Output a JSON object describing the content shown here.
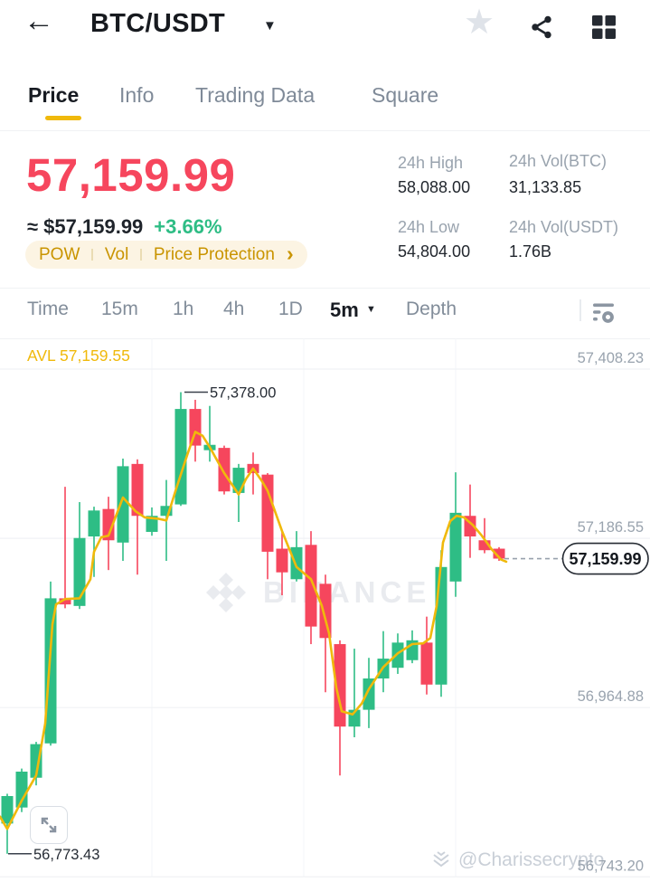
{
  "colors": {
    "up": "#2EBD85",
    "down": "#F6465D",
    "accent": "#F0B90B",
    "dark": "#1E2329",
    "gray": "#848E9C",
    "axis_gray": "#99A3AE",
    "grid": "#F0F2F5",
    "vgrid": "#F3F5F8",
    "annotation_line": "#3A414C",
    "annotation_text": "#262C35",
    "dashed": "#98A1AC",
    "box_border": "#262B33",
    "box_text": "#14181E"
  },
  "icons": {
    "back": "←",
    "caret_down": "▼",
    "chevron_right": "›",
    "star": "★"
  },
  "header": {
    "title": "BTC/USDT"
  },
  "tabs": {
    "items": [
      {
        "label": "Price",
        "active": true
      },
      {
        "label": "Info",
        "active": false
      },
      {
        "label": "Trading Data",
        "active": false
      },
      {
        "label": "Square",
        "active": false
      }
    ]
  },
  "ticker": {
    "last_price": "57,159.99",
    "fiat": "≈ $57,159.99",
    "change": "+3.66%",
    "tags": [
      "POW",
      "Vol",
      "Price Protection"
    ]
  },
  "stats": {
    "items": [
      {
        "label": "24h High",
        "value": "58,088.00"
      },
      {
        "label": "24h Vol(BTC)",
        "value": "31,133.85"
      },
      {
        "label": "24h Low",
        "value": "54,804.00"
      },
      {
        "label": "24h Vol(USDT)",
        "value": "1.76B"
      }
    ]
  },
  "toolbar": {
    "intervals": [
      "Time",
      "15m",
      "1h",
      "4h",
      "1D"
    ],
    "selected": "5m",
    "depth": "Depth"
  },
  "watermarks": {
    "center": "BINANCE",
    "bottom": "@Charissecrypto"
  },
  "chart_data": {
    "type": "candlestick",
    "pair": "BTC/USDT",
    "interval": "5m",
    "ma_label": "AVL 57,159.55",
    "y_axis": {
      "labels": [
        "57,408.23",
        "57,186.55",
        "56,964.88",
        "56,743.20"
      ],
      "values": [
        57408.23,
        57186.55,
        56964.88,
        56743.2
      ]
    },
    "high_annotation": {
      "label": "57,378.00",
      "price": 57378.0,
      "candle_index": 12
    },
    "low_annotation": {
      "label": "56,773.43",
      "price": 56773.43,
      "candle_index": 0
    },
    "last_price": {
      "label": "57,159.99",
      "price": 57159.99
    },
    "candles": [
      [
        56813,
        56852,
        56773.43,
        56849
      ],
      [
        56834,
        56885,
        56828,
        56881
      ],
      [
        56873,
        56920,
        56863,
        56917
      ],
      [
        56918,
        57130,
        56915,
        57108
      ],
      [
        57108,
        57254,
        57095,
        57100
      ],
      [
        57098,
        57234,
        57094,
        57187
      ],
      [
        57189,
        57228,
        57136,
        57223
      ],
      [
        57225,
        57241,
        57145,
        57184
      ],
      [
        57181,
        57291,
        57157,
        57281
      ],
      [
        57284,
        57290,
        57139,
        57216
      ],
      [
        57195,
        57227,
        57190,
        57216
      ],
      [
        57216,
        57263,
        57157,
        57229
      ],
      [
        57231,
        57378,
        57229,
        57356
      ],
      [
        57356,
        57368,
        57287,
        57308
      ],
      [
        57302,
        57360,
        57287,
        57309
      ],
      [
        57305,
        57308,
        57244,
        57248
      ],
      [
        57246,
        57284,
        57208,
        57279
      ],
      [
        57284,
        57299,
        57244,
        57272
      ],
      [
        57270,
        57272,
        57133,
        57169
      ],
      [
        57173,
        57195,
        57112,
        57142
      ],
      [
        57133,
        57196,
        57130,
        57175
      ],
      [
        57178,
        57196,
        57048,
        57071
      ],
      [
        57127,
        57139,
        56985,
        57056
      ],
      [
        57048,
        57053,
        56876,
        56940
      ],
      [
        56940,
        57042,
        56926,
        56962
      ],
      [
        56962,
        57030,
        56938,
        57003
      ],
      [
        57003,
        57065,
        56985,
        57029
      ],
      [
        57017,
        57062,
        57009,
        57050
      ],
      [
        57027,
        57066,
        57023,
        57053
      ],
      [
        57050,
        57084,
        56982,
        56995
      ],
      [
        56995,
        57171,
        56979,
        57149
      ],
      [
        57130,
        57273,
        57110,
        57220
      ],
      [
        57216,
        57257,
        57161,
        57189
      ],
      [
        57184,
        57213,
        57167,
        57171
      ],
      [
        57173,
        57175,
        57157,
        57159.99
      ]
    ],
    "ma_line": [
      [
        0,
        56822
      ],
      [
        8,
        56806
      ],
      [
        24,
        56843
      ],
      [
        40,
        56876
      ],
      [
        50,
        56944
      ],
      [
        58,
        57074
      ],
      [
        62,
        57100
      ],
      [
        72,
        57107
      ],
      [
        88,
        57108
      ],
      [
        100,
        57133
      ],
      [
        104,
        57169
      ],
      [
        112,
        57188
      ],
      [
        120,
        57190
      ],
      [
        136,
        57240
      ],
      [
        150,
        57222
      ],
      [
        160,
        57214
      ],
      [
        176,
        57212
      ],
      [
        184,
        57210
      ],
      [
        195,
        57252
      ],
      [
        208,
        57299
      ],
      [
        216,
        57326
      ],
      [
        224,
        57321
      ],
      [
        232,
        57306
      ],
      [
        248,
        57272
      ],
      [
        264,
        57244
      ],
      [
        272,
        57264
      ],
      [
        280,
        57278
      ],
      [
        290,
        57261
      ],
      [
        296,
        57249
      ],
      [
        312,
        57196
      ],
      [
        328,
        57149
      ],
      [
        344,
        57133
      ],
      [
        356,
        57098
      ],
      [
        364,
        57062
      ],
      [
        372,
        56991
      ],
      [
        378,
        56960
      ],
      [
        390,
        56956
      ],
      [
        400,
        56970
      ],
      [
        408,
        56989
      ],
      [
        424,
        57018
      ],
      [
        440,
        57036
      ],
      [
        456,
        57048
      ],
      [
        468,
        57049
      ],
      [
        476,
        57056
      ],
      [
        483,
        57098
      ],
      [
        490,
        57181
      ],
      [
        498,
        57209
      ],
      [
        505,
        57216
      ],
      [
        513,
        57214
      ],
      [
        523,
        57204
      ],
      [
        533,
        57190
      ],
      [
        544,
        57172
      ],
      [
        554,
        57159
      ],
      [
        560,
        57156
      ]
    ]
  }
}
